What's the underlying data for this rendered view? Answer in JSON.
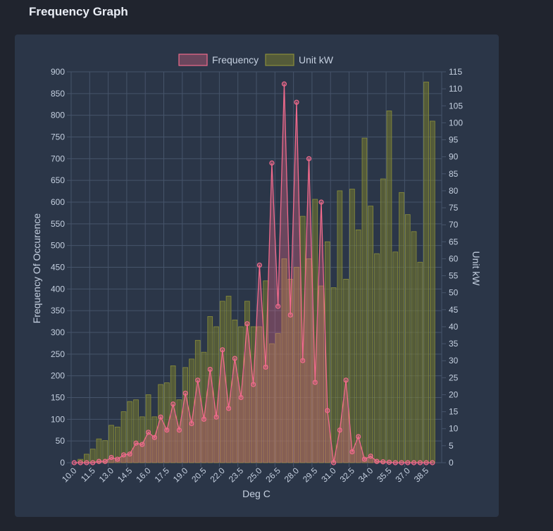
{
  "page": {
    "title": "Frequency Graph"
  },
  "colors": {
    "frequency_line": "#f06a8c",
    "frequency_fill": "rgba(240,106,140,0.32)",
    "unit_bar_fill": "rgba(118,122,46,0.55)",
    "unit_bar_stroke": "#8a8e3a",
    "grid": "#46546a",
    "tick_text": "#c5d0e0",
    "label_text": "#c5d0e0"
  },
  "chart_data": {
    "type": "bar",
    "title": "",
    "legend_position": "top",
    "grid": true,
    "xlabel": "Deg C",
    "ylabel_left": "Frequency Of Occurence",
    "ylabel_right": "Unit kW",
    "ylim_left": [
      0,
      900
    ],
    "ylim_right": [
      0,
      115
    ],
    "yticks_left": [
      0,
      50,
      100,
      150,
      200,
      250,
      300,
      350,
      400,
      450,
      500,
      550,
      600,
      650,
      700,
      750,
      800,
      850,
      900
    ],
    "yticks_right": [
      0,
      5,
      10,
      15,
      20,
      25,
      30,
      35,
      40,
      45,
      50,
      55,
      60,
      65,
      70,
      75,
      80,
      85,
      90,
      95,
      100,
      105,
      110,
      115
    ],
    "x": [
      "10.0",
      "10.5",
      "11.0",
      "11.5",
      "12.0",
      "12.5",
      "13.0",
      "13.5",
      "14.0",
      "14.5",
      "15.0",
      "15.5",
      "16.0",
      "16.5",
      "17.0",
      "17.5",
      "18.0",
      "18.5",
      "19.0",
      "19.5",
      "20.0",
      "20.5",
      "21.0",
      "21.5",
      "22.0",
      "22.5",
      "23.0",
      "23.5",
      "24.0",
      "24.5",
      "25.0",
      "25.5",
      "26.0",
      "26.5",
      "27.0",
      "27.5",
      "28.0",
      "28.5",
      "29.0",
      "29.5",
      "30.0",
      "30.5",
      "31.0",
      "31.5",
      "32.0",
      "32.5",
      "33.0",
      "33.5",
      "34.0",
      "34.5",
      "35.0",
      "35.5",
      "36.0",
      "36.5",
      "37.0",
      "37.5",
      "38.0",
      "38.5",
      "39.0",
      "39.5"
    ],
    "x_tick_labels": [
      "10.0",
      "11.5",
      "13.0",
      "14.5",
      "16.0",
      "17.5",
      "19.0",
      "20.5",
      "22.0",
      "23.5",
      "25.0",
      "26.5",
      "28.0",
      "29.5",
      "31.0",
      "32.5",
      "34.0",
      "35.5",
      "37.0",
      "38.5"
    ],
    "series": [
      {
        "name": "Frequency",
        "type": "area-line",
        "axis": "left",
        "values": [
          0,
          0,
          0,
          0,
          3,
          3,
          12,
          8,
          18,
          20,
          45,
          42,
          70,
          58,
          105,
          75,
          135,
          75,
          160,
          90,
          190,
          100,
          215,
          105,
          260,
          125,
          240,
          150,
          320,
          180,
          455,
          220,
          690,
          360,
          872,
          340,
          830,
          235,
          700,
          185,
          600,
          120,
          0,
          75,
          190,
          25,
          60,
          8,
          15,
          3,
          2,
          1,
          0,
          0,
          0,
          0,
          0,
          0,
          0,
          0
        ]
      },
      {
        "name": "Unit kW",
        "type": "bar",
        "axis": "right",
        "values": [
          0,
          1,
          2.5,
          4,
          7,
          6.5,
          11,
          10.5,
          15,
          18,
          18.5,
          13.5,
          20,
          13.5,
          23,
          23.5,
          28.5,
          18.5,
          28,
          30.5,
          36,
          32.5,
          43,
          40,
          47.5,
          49,
          42,
          40,
          47.5,
          40,
          40,
          53.5,
          35,
          38,
          60,
          54,
          57.5,
          72.5,
          60,
          77.5,
          52,
          65,
          51.5,
          80,
          54,
          80.5,
          68.5,
          95.5,
          75.5,
          61.5,
          83.5,
          103.5,
          62,
          79.5,
          73,
          68,
          59,
          112,
          100.5,
          0
        ]
      }
    ]
  }
}
